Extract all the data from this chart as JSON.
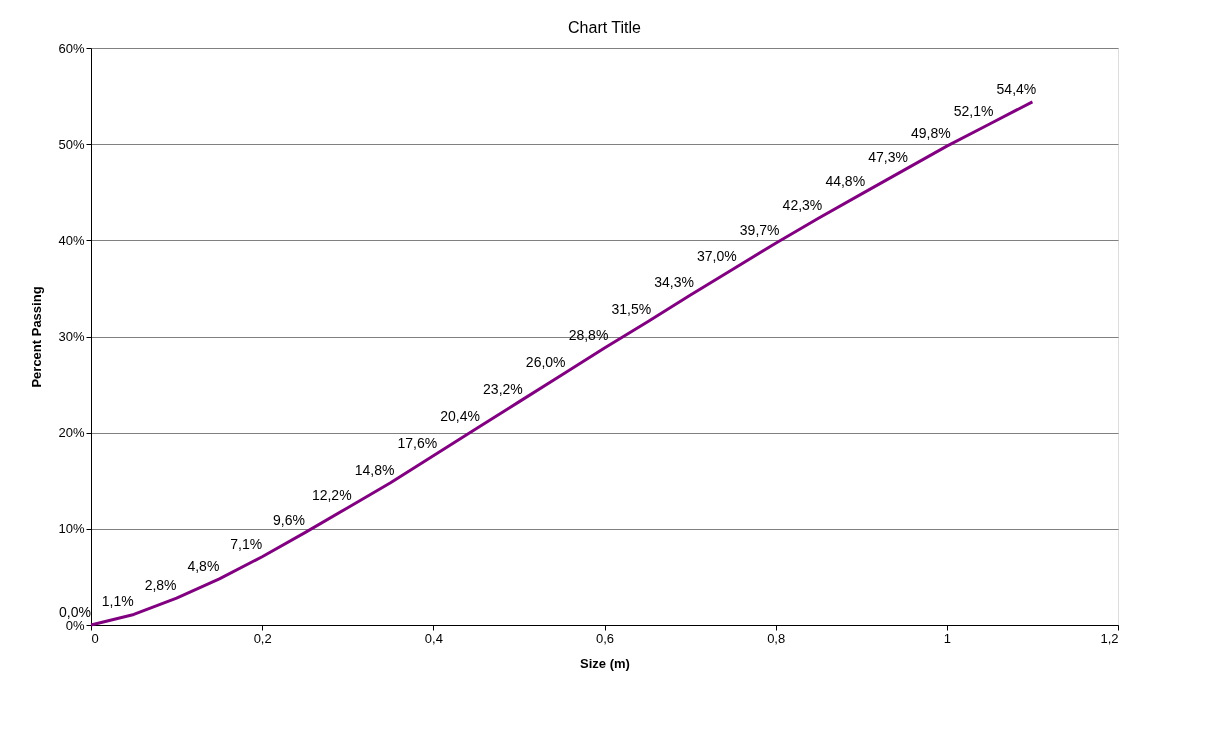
{
  "chart_data": {
    "type": "line",
    "title": "Chart Title",
    "xlabel": "Size (m)",
    "ylabel": "Percent Passing",
    "x": [
      0,
      0.05,
      0.1,
      0.15,
      0.2,
      0.25,
      0.3,
      0.35,
      0.4,
      0.45,
      0.5,
      0.55,
      0.6,
      0.65,
      0.7,
      0.75,
      0.8,
      0.85,
      0.9,
      0.95,
      1.0,
      1.05,
      1.1
    ],
    "series": [
      {
        "color": "#800080",
        "values": [
          0.0,
          1.1,
          2.8,
          4.8,
          7.1,
          9.6,
          12.2,
          14.8,
          17.6,
          20.4,
          23.2,
          26.0,
          28.8,
          31.5,
          34.3,
          37.0,
          39.7,
          42.3,
          44.8,
          47.3,
          49.8,
          52.1,
          54.4
        ],
        "value_labels": [
          "0,0%",
          "1,1%",
          "2,8%",
          "4,8%",
          "7,1%",
          "9,6%",
          "12,2%",
          "14,8%",
          "17,6%",
          "20,4%",
          "23,2%",
          "26,0%",
          "28,8%",
          "31,5%",
          "34,3%",
          "37,0%",
          "39,7%",
          "42,3%",
          "44,8%",
          "47,3%",
          "49,8%",
          "52,1%",
          "54,4%"
        ]
      }
    ],
    "xlim": [
      0,
      1.2
    ],
    "xticks": [
      0,
      {
        "value": 0.2,
        "label": "0,2"
      },
      {
        "value": 0.4,
        "label": "0,4"
      },
      {
        "value": 0.6,
        "label": "0,6"
      },
      {
        "value": 0.8,
        "label": "0,8"
      },
      1,
      {
        "value": 1.2,
        "label": "1,2"
      }
    ],
    "ylim": [
      0,
      60
    ],
    "yticks": [
      {
        "value": 0,
        "label": "0%"
      },
      {
        "value": 10,
        "label": "10%"
      },
      {
        "value": 20,
        "label": "20%"
      },
      {
        "value": 30,
        "label": "30%"
      },
      {
        "value": 40,
        "label": "40%"
      },
      {
        "value": 50,
        "label": "50%"
      },
      {
        "value": 60,
        "label": "60%"
      }
    ],
    "grid": "y",
    "marker": "none",
    "line_style": "solid"
  }
}
